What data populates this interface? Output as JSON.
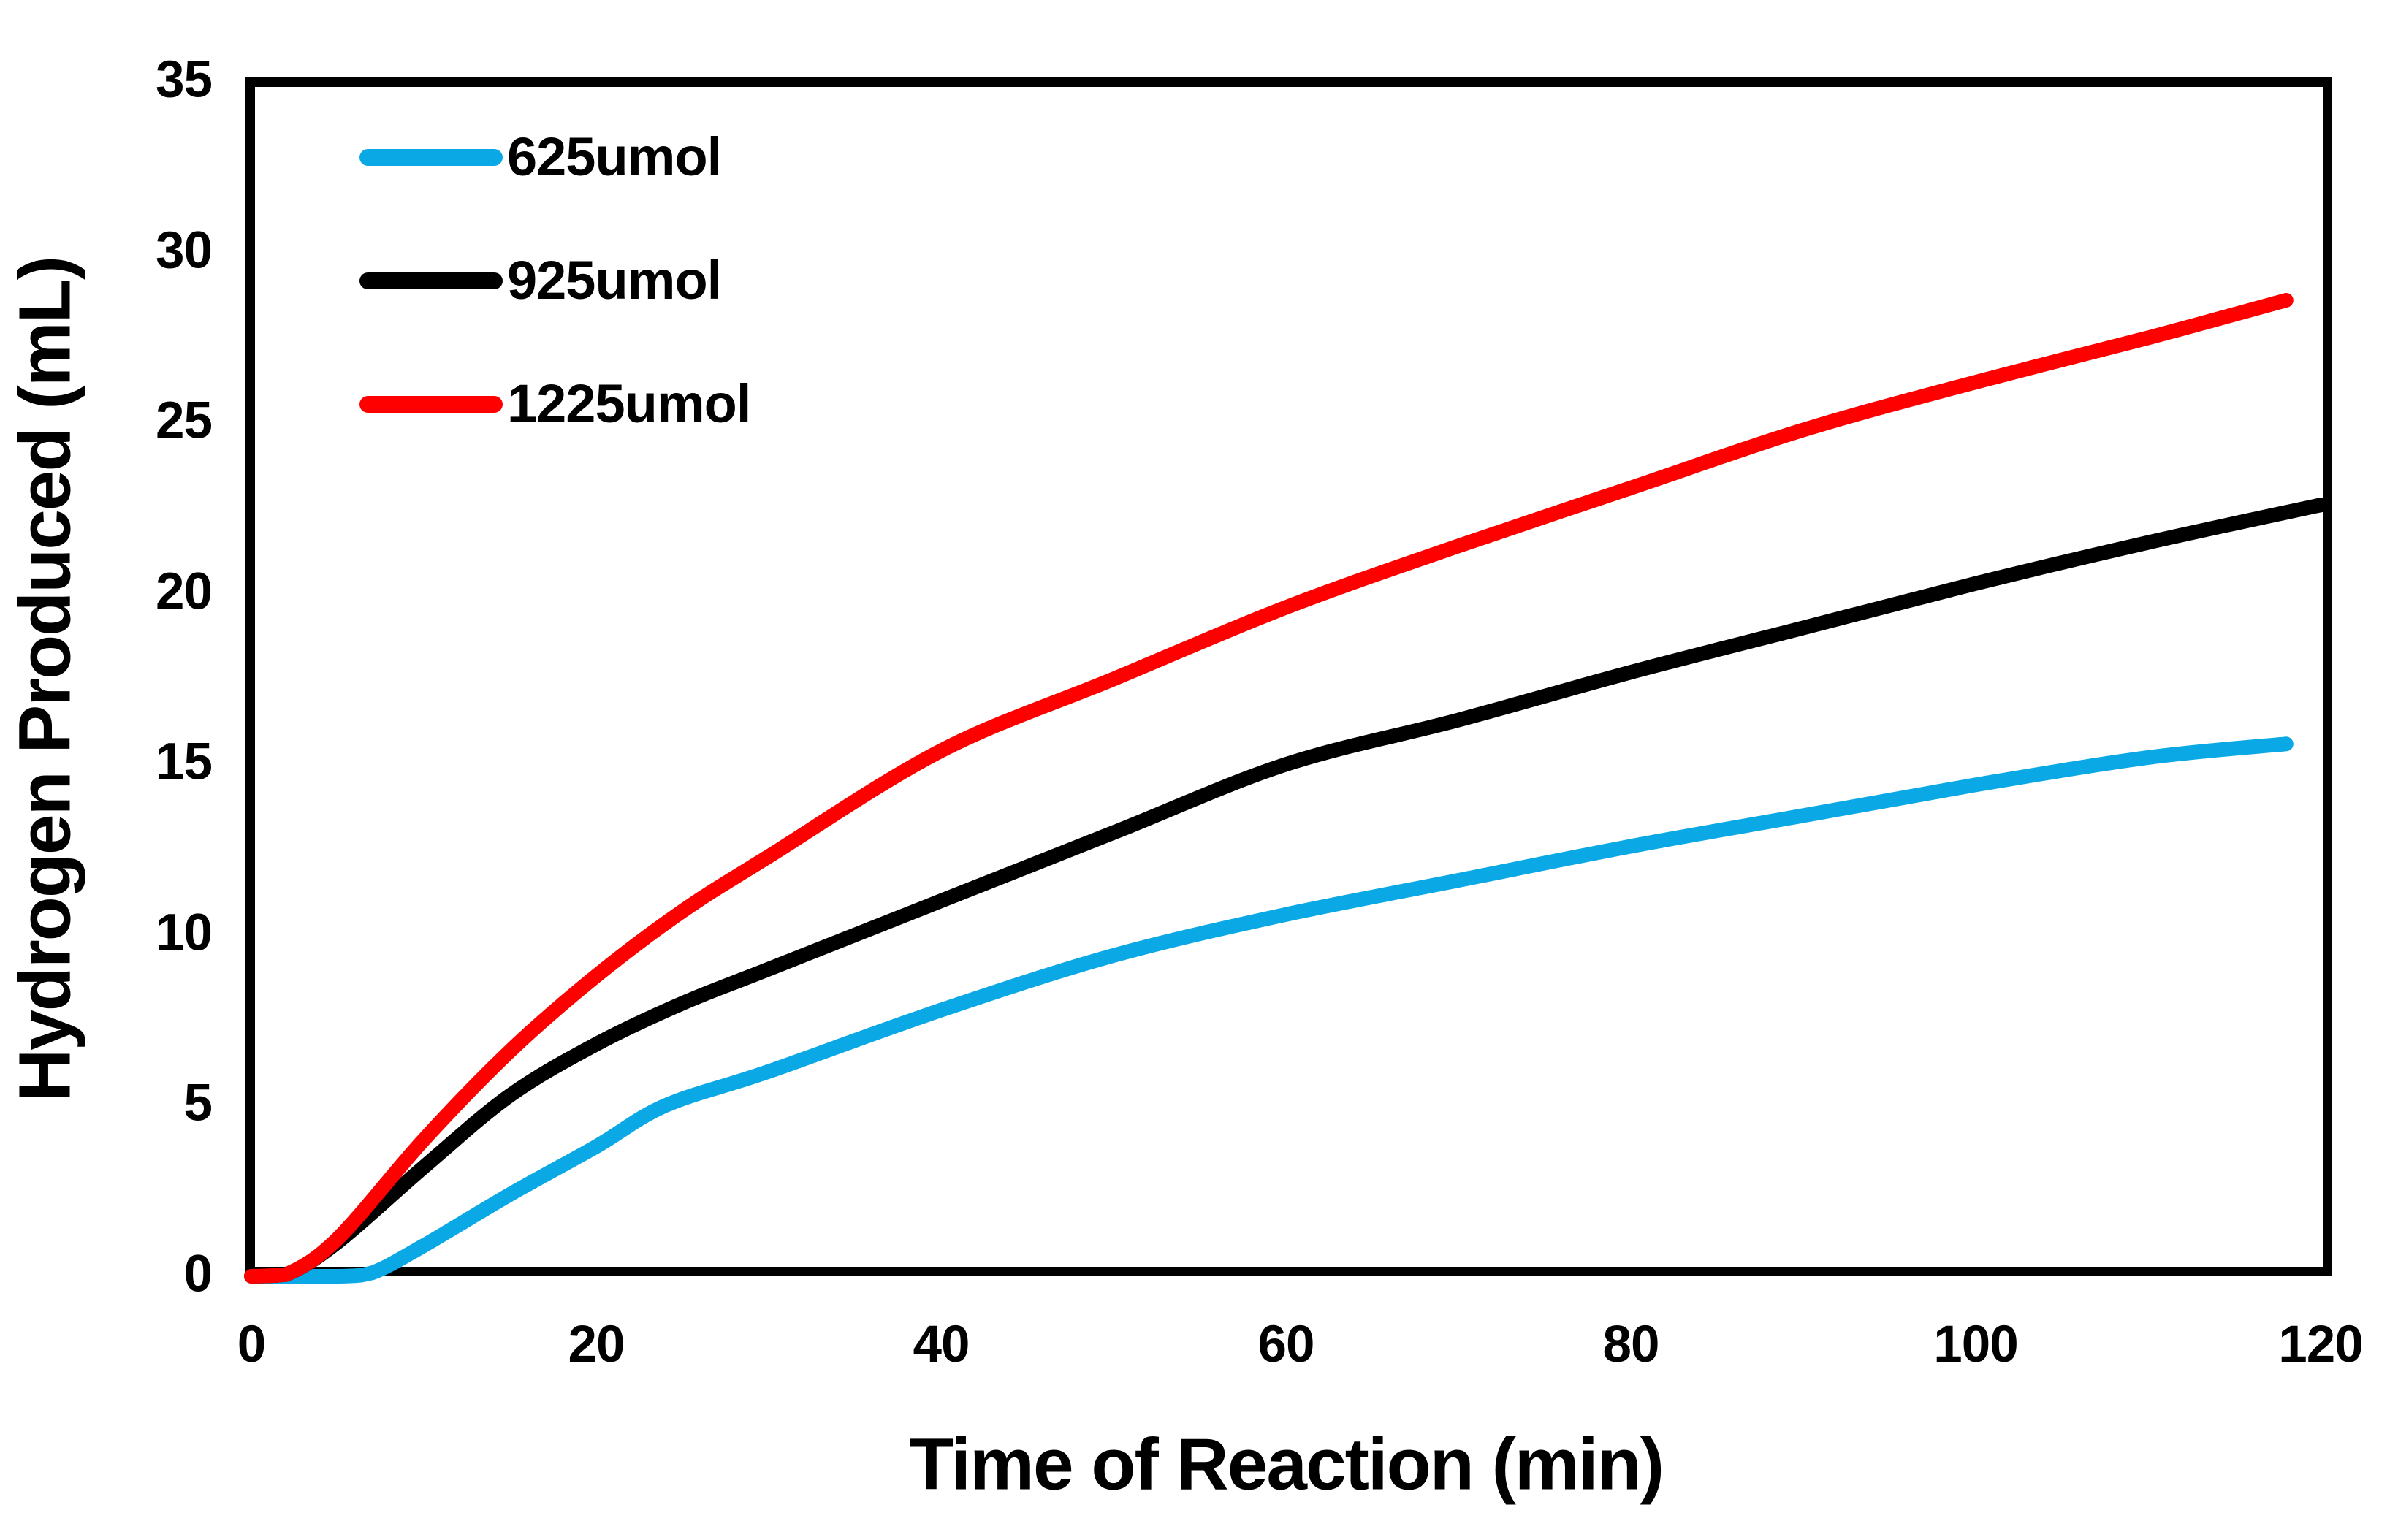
{
  "chart_data": {
    "type": "line",
    "title": "",
    "xlabel": "Time of Reaction (min)",
    "ylabel": "Hydrogen Produced (mL)",
    "xlim": [
      0,
      120
    ],
    "ylim": [
      0,
      35
    ],
    "x_ticks": [
      0,
      20,
      40,
      60,
      80,
      100,
      120
    ],
    "y_ticks": [
      0,
      5,
      10,
      15,
      20,
      25,
      30,
      35
    ],
    "grid": false,
    "legend_position": "inside-top-left",
    "frame_color": "#000000",
    "series": [
      {
        "name": "625umol",
        "color": "#0AA9E6",
        "points": [
          [
            0,
            0
          ],
          [
            5,
            0
          ],
          [
            7,
            0.1
          ],
          [
            10,
            0.9
          ],
          [
            15,
            2.4
          ],
          [
            20,
            3.8
          ],
          [
            24,
            5.0
          ],
          [
            30,
            6.0
          ],
          [
            40,
            7.8
          ],
          [
            50,
            9.4
          ],
          [
            60,
            10.6
          ],
          [
            70,
            11.6
          ],
          [
            80,
            12.6
          ],
          [
            90,
            13.5
          ],
          [
            100,
            14.4
          ],
          [
            110,
            15.2
          ],
          [
            118,
            15.6
          ]
        ]
      },
      {
        "name": "925umol",
        "color": "#000000",
        "points": [
          [
            0,
            0
          ],
          [
            2,
            0.05
          ],
          [
            5,
            1.0
          ],
          [
            10,
            3.2
          ],
          [
            15,
            5.3
          ],
          [
            20,
            6.8
          ],
          [
            25,
            8.0
          ],
          [
            30,
            9.0
          ],
          [
            40,
            11.0
          ],
          [
            50,
            13.0
          ],
          [
            60,
            15.0
          ],
          [
            70,
            16.3
          ],
          [
            80,
            17.7
          ],
          [
            90,
            19.0
          ],
          [
            100,
            20.3
          ],
          [
            110,
            21.5
          ],
          [
            120,
            22.6
          ]
        ]
      },
      {
        "name": "1225umol",
        "color": "#FF0000",
        "points": [
          [
            0,
            0
          ],
          [
            2,
            0.05
          ],
          [
            5,
            1.1
          ],
          [
            10,
            4.0
          ],
          [
            15,
            6.6
          ],
          [
            20,
            8.8
          ],
          [
            25,
            10.7
          ],
          [
            30,
            12.3
          ],
          [
            40,
            15.4
          ],
          [
            50,
            17.5
          ],
          [
            60,
            19.6
          ],
          [
            70,
            21.4
          ],
          [
            80,
            23.1
          ],
          [
            90,
            24.8
          ],
          [
            100,
            26.2
          ],
          [
            110,
            27.5
          ],
          [
            118,
            28.6
          ]
        ]
      }
    ],
    "legend_order": [
      0,
      1,
      2
    ],
    "legend_row_y": [
      215,
      384,
      553
    ]
  }
}
